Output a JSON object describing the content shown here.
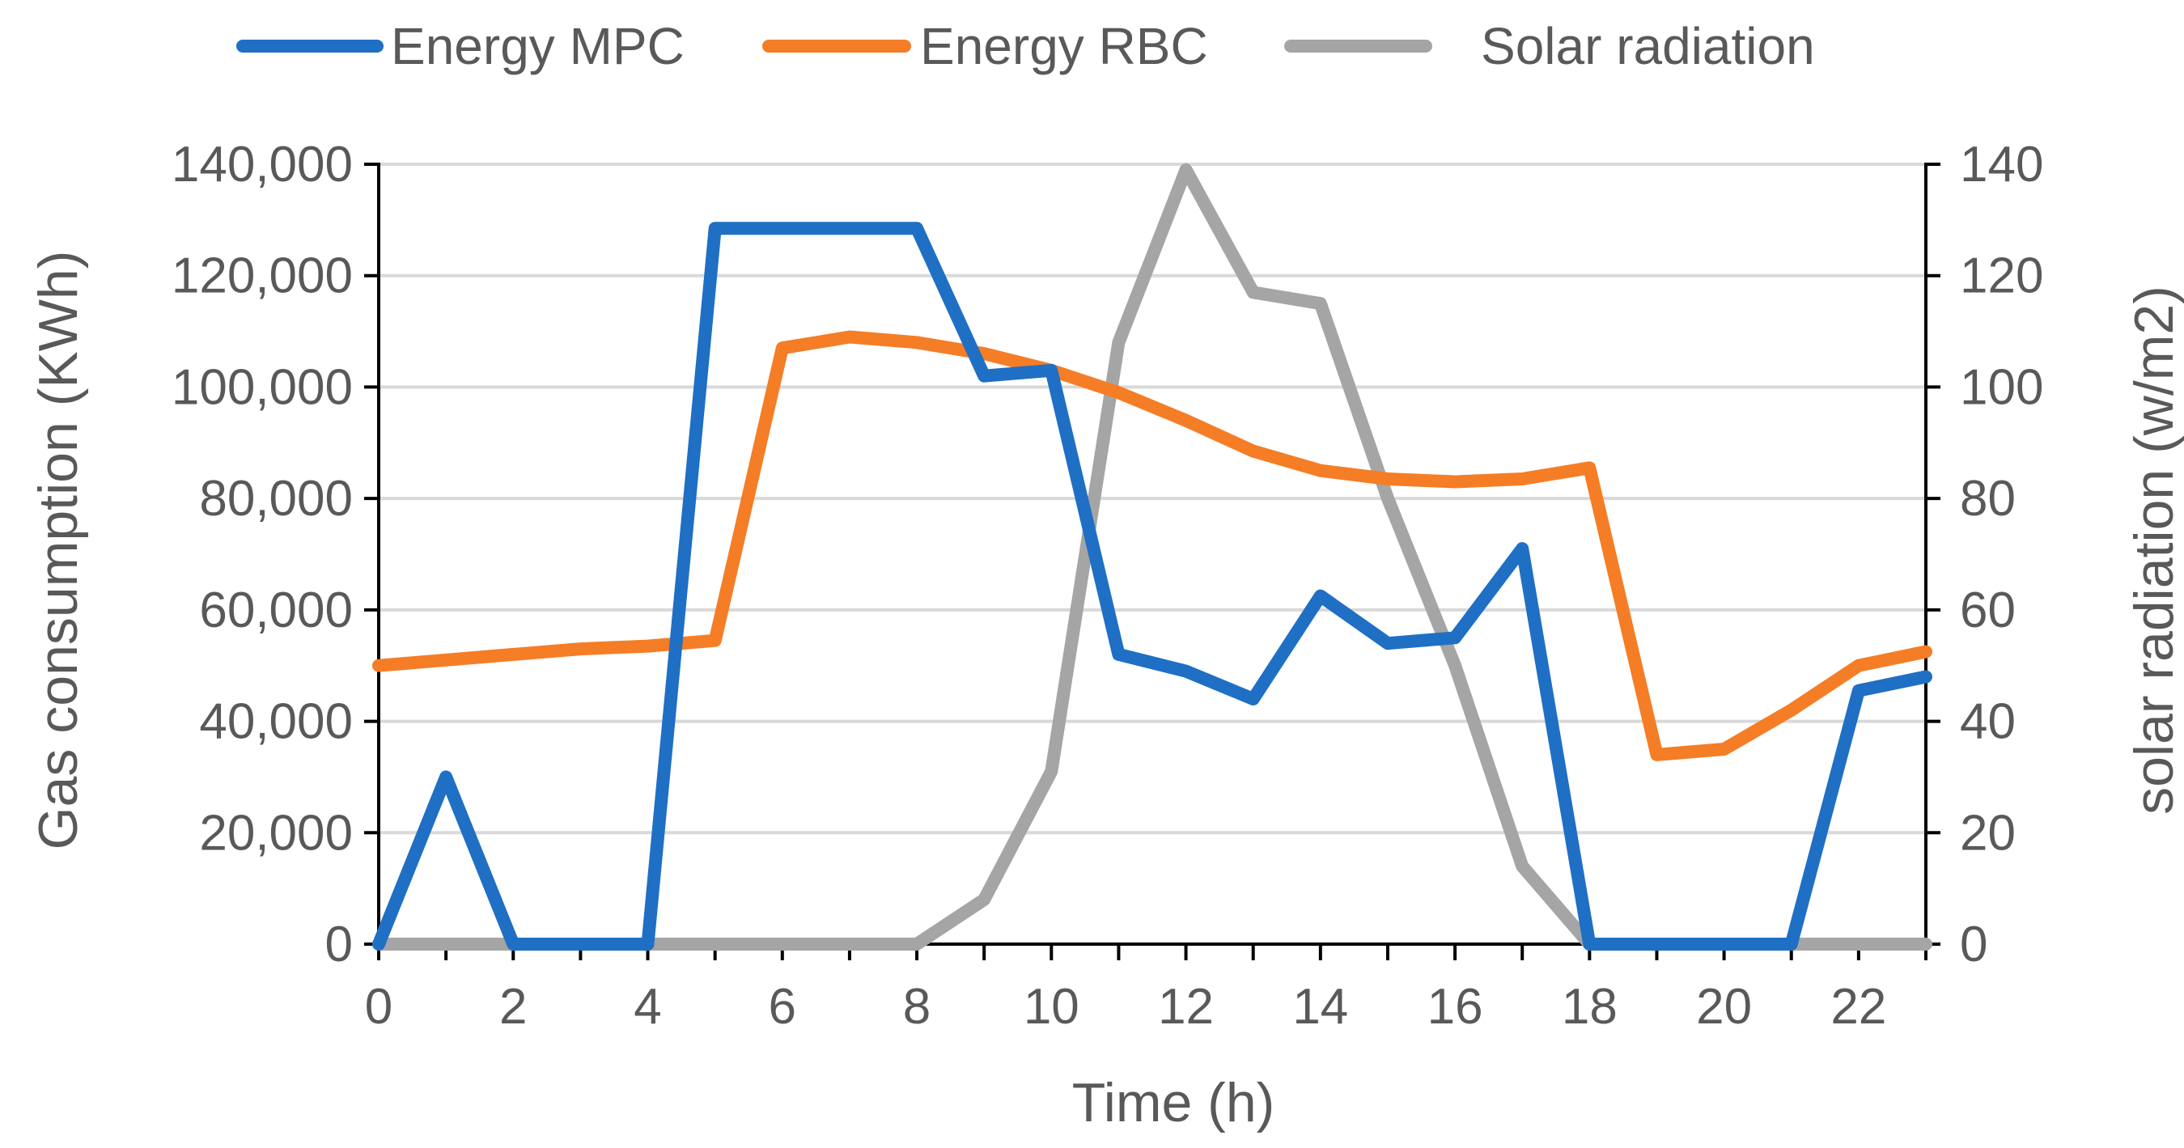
{
  "chart_data": {
    "type": "line",
    "title": "",
    "xlabel": "Time (h)",
    "ylabel": "Gas consumption (KWh)",
    "y2label": "solar radiation (w/m2)",
    "x": [
      0,
      1,
      2,
      3,
      4,
      5,
      6,
      7,
      8,
      9,
      10,
      11,
      12,
      13,
      14,
      15,
      16,
      17,
      18,
      19,
      20,
      21,
      22,
      23
    ],
    "xticks": [
      0,
      2,
      4,
      6,
      8,
      10,
      12,
      14,
      16,
      18,
      20,
      22
    ],
    "xtick_labels": [
      "0",
      "2",
      "4",
      "6",
      "8",
      "10",
      "12",
      "14",
      "16",
      "18",
      "20",
      "22"
    ],
    "xlim": [
      0,
      23
    ],
    "ylim": [
      0,
      140000
    ],
    "yticks": [
      0,
      20000,
      40000,
      60000,
      80000,
      100000,
      120000,
      140000
    ],
    "ytick_labels": [
      "0",
      "20,000",
      "40,000",
      "60,000",
      "80,000",
      "100,000",
      "120,000",
      "140,000"
    ],
    "y2lim": [
      0,
      140
    ],
    "y2ticks": [
      0,
      20,
      40,
      60,
      80,
      100,
      120,
      140
    ],
    "y2tick_labels": [
      "0",
      "20",
      "40",
      "60",
      "80",
      "100",
      "120",
      "140"
    ],
    "grid": true,
    "legend_position": "top",
    "series": [
      {
        "name": "Energy MPC",
        "axis": "left",
        "color": "#1f6fc5",
        "values": [
          0,
          30000,
          0,
          0,
          0,
          128500,
          128500,
          128500,
          128500,
          102000,
          103000,
          52000,
          49000,
          44000,
          62500,
          54000,
          55000,
          71000,
          0,
          0,
          0,
          0,
          45500,
          48000
        ]
      },
      {
        "name": "Energy RBC",
        "axis": "left",
        "color": "#f57d26",
        "values": [
          50000,
          51000,
          52000,
          53000,
          53500,
          54500,
          107000,
          109000,
          108000,
          106000,
          103000,
          99000,
          94000,
          88500,
          85000,
          83500,
          83000,
          83500,
          85500,
          34000,
          35000,
          42000,
          50000,
          52500
        ]
      },
      {
        "name": "Solar radiation",
        "axis": "right",
        "color": "#a5a5a5",
        "values": [
          0,
          0,
          0,
          0,
          0,
          0,
          0,
          0,
          0,
          8,
          31,
          108,
          139,
          117,
          115,
          80,
          50,
          14,
          0,
          0,
          0,
          0,
          0,
          0
        ]
      }
    ]
  }
}
